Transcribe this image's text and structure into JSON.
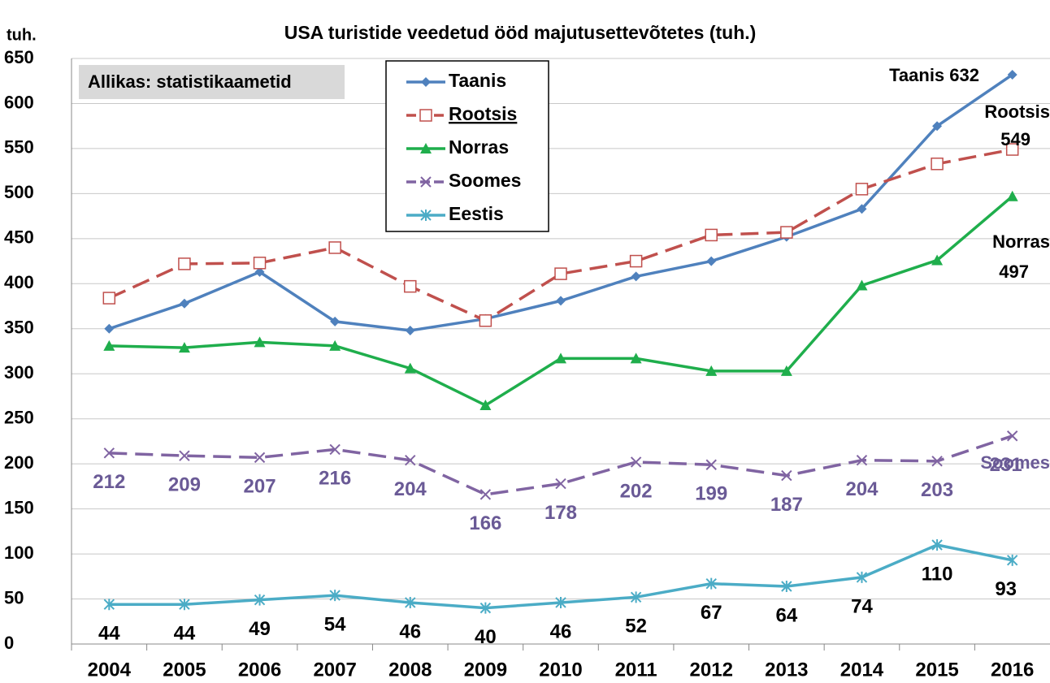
{
  "chart_data": {
    "type": "line",
    "title": "USA turistide veedetud ööd majutusettevõtetes (tuh.)",
    "y_axis_label": "tuh.",
    "source": "Allikas: statistikaametid",
    "categories": [
      "2004",
      "2005",
      "2006",
      "2007",
      "2008",
      "2009",
      "2010",
      "2011",
      "2012",
      "2013",
      "2014",
      "2015",
      "2016"
    ],
    "ylim": [
      0,
      650
    ],
    "yticks": [
      0,
      50,
      100,
      150,
      200,
      250,
      300,
      350,
      400,
      450,
      500,
      550,
      600,
      650
    ],
    "grid": true,
    "series": [
      {
        "name": "Taanis",
        "color": "#4f81bd",
        "marker": "diamond",
        "dash": false,
        "values": [
          350,
          378,
          413,
          358,
          348,
          361,
          381,
          408,
          425,
          452,
          483,
          575,
          632
        ]
      },
      {
        "name": "Rootsis",
        "color": "#c0504d",
        "marker": "square-open",
        "dash": true,
        "values": [
          384,
          422,
          423,
          440,
          397,
          359,
          411,
          425,
          454,
          457,
          505,
          533,
          549
        ]
      },
      {
        "name": "Norras",
        "color": "#1fae4c",
        "marker": "triangle",
        "dash": false,
        "values": [
          331,
          329,
          335,
          331,
          306,
          265,
          317,
          317,
          303,
          303,
          398,
          426,
          497
        ]
      },
      {
        "name": "Soomes",
        "color": "#8064a2",
        "marker": "x",
        "dash": true,
        "label_color": "#6a5a96",
        "values": [
          212,
          209,
          207,
          216,
          204,
          166,
          178,
          202,
          199,
          187,
          204,
          203,
          231
        ]
      },
      {
        "name": "Eestis",
        "color": "#4bacc6",
        "marker": "star",
        "dash": false,
        "label_color": "#000000",
        "values": [
          44,
          44,
          49,
          54,
          46,
          40,
          46,
          52,
          67,
          64,
          74,
          110,
          93
        ]
      }
    ],
    "annotations": [
      "Taanis 632",
      "Rootsis",
      "549",
      "Norras",
      "497",
      "Soomes"
    ]
  }
}
